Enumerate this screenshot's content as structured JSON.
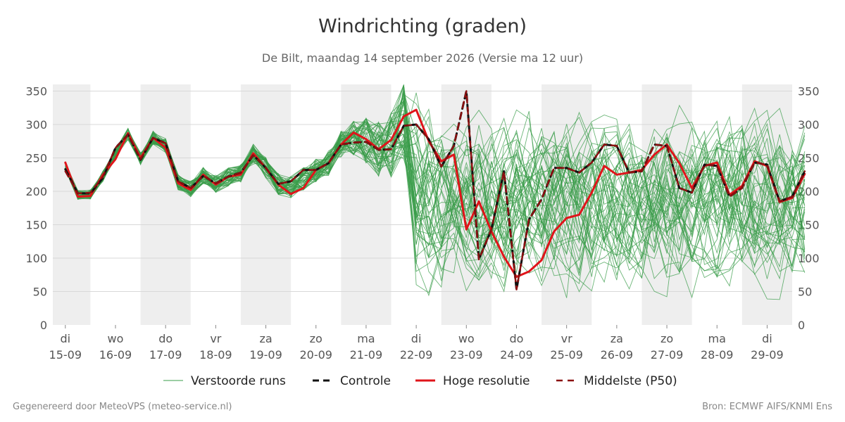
{
  "title": "Windrichting (graden)",
  "subtitle": "De Bilt, maandag 14 september 2026 (Versie ma 12 uur)",
  "footer": {
    "left": "Gegenereerd door MeteoVPS (meteo-service.nl)",
    "right": "Bron: ECMWF AIFS/KNMI Ens"
  },
  "colors": {
    "ensemble": "#3a9c49",
    "control": "#111111",
    "high_res": "#e0141a",
    "median": "#8b1010",
    "band": "#eeeeee",
    "grid": "#d8d8d8"
  },
  "chart_data": {
    "type": "line",
    "ylim": [
      0,
      360
    ],
    "yticks": [
      0,
      50,
      100,
      150,
      200,
      250,
      300,
      350
    ],
    "xlim": [
      -0.25,
      14.5
    ],
    "x_ticks": [
      {
        "day": "di",
        "date": "15-09"
      },
      {
        "day": "wo",
        "date": "16-09"
      },
      {
        "day": "do",
        "date": "17-09"
      },
      {
        "day": "vr",
        "date": "18-09"
      },
      {
        "day": "za",
        "date": "19-09"
      },
      {
        "day": "zo",
        "date": "20-09"
      },
      {
        "day": "ma",
        "date": "21-09"
      },
      {
        "day": "di",
        "date": "22-09"
      },
      {
        "day": "wo",
        "date": "23-09"
      },
      {
        "day": "do",
        "date": "24-09"
      },
      {
        "day": "vr",
        "date": "25-09"
      },
      {
        "day": "za",
        "date": "26-09"
      },
      {
        "day": "zo",
        "date": "27-09"
      },
      {
        "day": "ma",
        "date": "28-09"
      },
      {
        "day": "di",
        "date": "29-09"
      }
    ],
    "shaded_days": [
      0,
      2,
      4,
      6,
      8,
      10,
      12,
      14
    ],
    "grid": true,
    "legend_position": "bottom",
    "x_step_days": 0.25,
    "series": [
      {
        "name": "Controle",
        "style": "dashed",
        "values": [
          233,
          197,
          197,
          220,
          265,
          285,
          247,
          280,
          272,
          215,
          205,
          223,
          212,
          222,
          228,
          254,
          235,
          211,
          215,
          232,
          232,
          242,
          270,
          273,
          274,
          262,
          263,
          298,
          300,
          278,
          237,
          268,
          350,
          98,
          143,
          230,
          53,
          158,
          188,
          235,
          235,
          228,
          243,
          270,
          268,
          228,
          230,
          270,
          268,
          205,
          198,
          240,
          238,
          192,
          205,
          243,
          240,
          185,
          192,
          230
        ]
      },
      {
        "name": "Hoge resolutie",
        "style": "solid",
        "values": [
          243,
          192,
          193,
          225,
          248,
          287,
          250,
          280,
          265,
          212,
          202,
          225,
          210,
          222,
          225,
          257,
          235,
          210,
          196,
          205,
          232,
          242,
          270,
          288,
          278,
          263,
          277,
          312,
          322,
          275,
          245,
          255,
          143,
          185,
          140,
          102,
          72,
          80,
          97,
          140,
          160,
          165,
          198,
          238,
          225,
          228,
          232,
          255,
          270,
          242,
          205,
          238,
          243,
          195,
          208,
          245,
          238,
          184,
          190,
          226
        ]
      },
      {
        "name": "Middelste (P50)",
        "style": "dashed",
        "values": [
          230,
          197,
          198,
          222,
          265,
          285,
          248,
          280,
          272,
          215,
          205,
          223,
          212,
          222,
          228,
          254,
          235,
          211,
          215,
          232,
          232,
          242,
          270,
          273,
          274,
          262,
          263,
          298,
          300,
          278,
          237,
          268,
          350,
          98,
          143,
          230,
          53,
          158,
          188,
          235,
          235,
          228,
          243,
          270,
          268,
          228,
          230,
          270,
          268,
          205,
          198,
          240,
          238,
          192,
          205,
          243,
          240,
          185,
          192,
          230
        ]
      },
      {
        "name": "Verstoorde runs",
        "style": "thin",
        "member_count": 50,
        "values": []
      }
    ]
  },
  "legend": [
    {
      "label": "Verstoorde runs"
    },
    {
      "label": "Controle"
    },
    {
      "label": "Hoge resolutie"
    },
    {
      "label": "Middelste (P50)"
    }
  ]
}
